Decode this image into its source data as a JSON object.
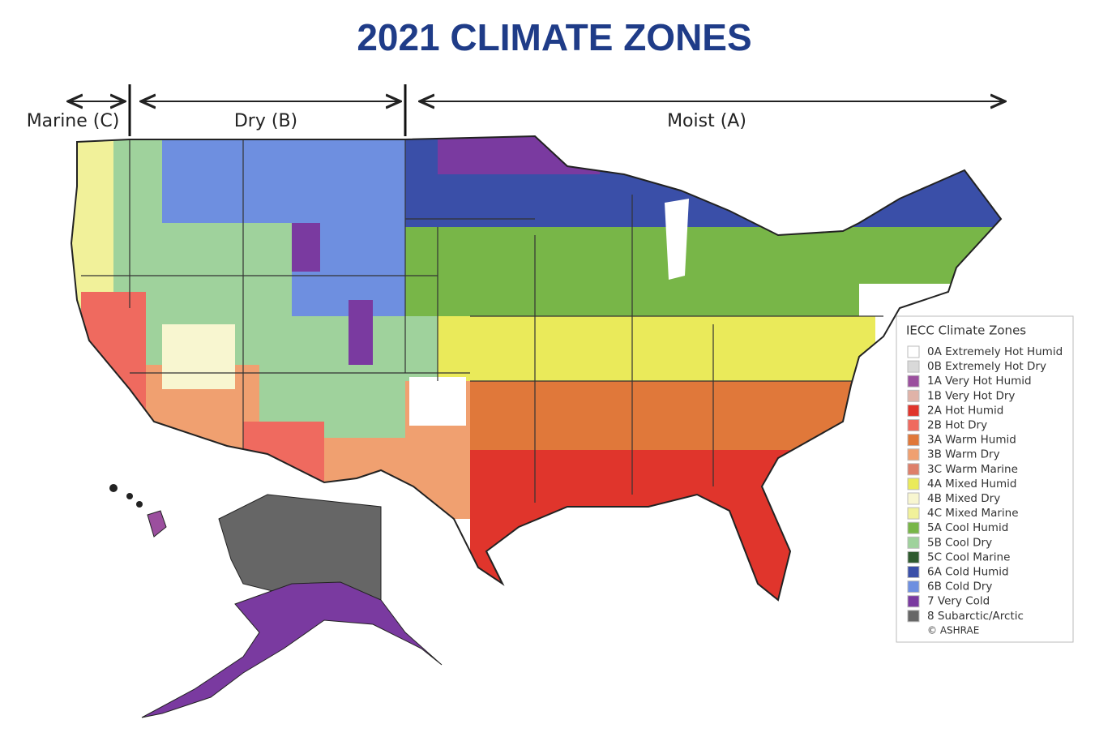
{
  "header": {
    "title": "2021 CLIMATE ZONES"
  },
  "regions": [
    {
      "label": "Marine (C)"
    },
    {
      "label": "Dry (B)"
    },
    {
      "label": "Moist (A)"
    }
  ],
  "legend": {
    "title": "IECC Climate Zones",
    "items": [
      {
        "label": "0A Extremely Hot Humid",
        "color": "#ffffff"
      },
      {
        "label": "0B Extremely Hot Dry",
        "color": "#d9d9d9"
      },
      {
        "label": "1A Very Hot Humid",
        "color": "#9b4f9e"
      },
      {
        "label": "1B Very Hot Dry",
        "color": "#e0b3a8"
      },
      {
        "label": "2A Hot Humid",
        "color": "#e0352c"
      },
      {
        "label": "2B Hot Dry",
        "color": "#ef6a5f"
      },
      {
        "label": "3A Warm Humid",
        "color": "#e0783a"
      },
      {
        "label": "3B Warm Dry",
        "color": "#f0a070"
      },
      {
        "label": "3C Warm Marine",
        "color": "#de7f6a"
      },
      {
        "label": "4A Mixed Humid",
        "color": "#eaea5a"
      },
      {
        "label": "4B Mixed Dry",
        "color": "#f8f6d0"
      },
      {
        "label": "4C Mixed Marine",
        "color": "#f1f19a"
      },
      {
        "label": "5A Cool Humid",
        "color": "#78b648"
      },
      {
        "label": "5B Cool Dry",
        "color": "#9fd29c"
      },
      {
        "label": "5C Cool Marine",
        "color": "#2e5a2e"
      },
      {
        "label": "6A Cold Humid",
        "color": "#3a4fa8"
      },
      {
        "label": "6B Cold Dry",
        "color": "#6e8fe0"
      },
      {
        "label": "7 Very Cold",
        "color": "#7a3aa0"
      },
      {
        "label": "8 Subarctic/Arctic",
        "color": "#666666"
      }
    ],
    "credit": "© ASHRAE"
  }
}
